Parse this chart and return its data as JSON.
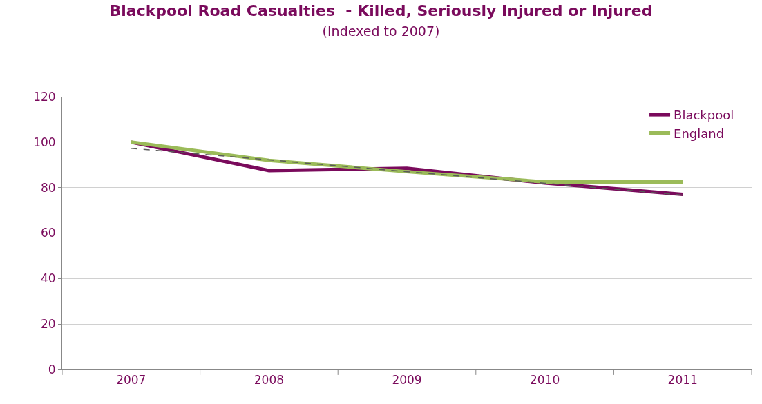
{
  "chart_data": {
    "type": "line",
    "title": "Blackpool Road Casualties  - Killed, Seriously Injured or Injured",
    "subtitle": "(Indexed to 2007)",
    "categories": [
      "2007",
      "2008",
      "2009",
      "2010",
      "2011"
    ],
    "series": [
      {
        "name": "Blackpool",
        "color": "#7a0a5c",
        "values": [
          100,
          87.5,
          88.5,
          82,
          77
        ]
      },
      {
        "name": "England",
        "color": "#9bbb59",
        "values": [
          100,
          92,
          87,
          82.5,
          82.5
        ]
      },
      {
        "type": "line",
        "color": "#595959",
        "line_style": "dashed",
        "values": [
          97.3,
          92.2,
          87,
          81.9,
          76.7
        ]
      }
    ],
    "ylim": [
      0,
      120
    ],
    "yticks": [
      0,
      20,
      40,
      60,
      80,
      100,
      120
    ],
    "grid": "y",
    "legend": "top right",
    "marker": "none",
    "line_style": "solid"
  }
}
